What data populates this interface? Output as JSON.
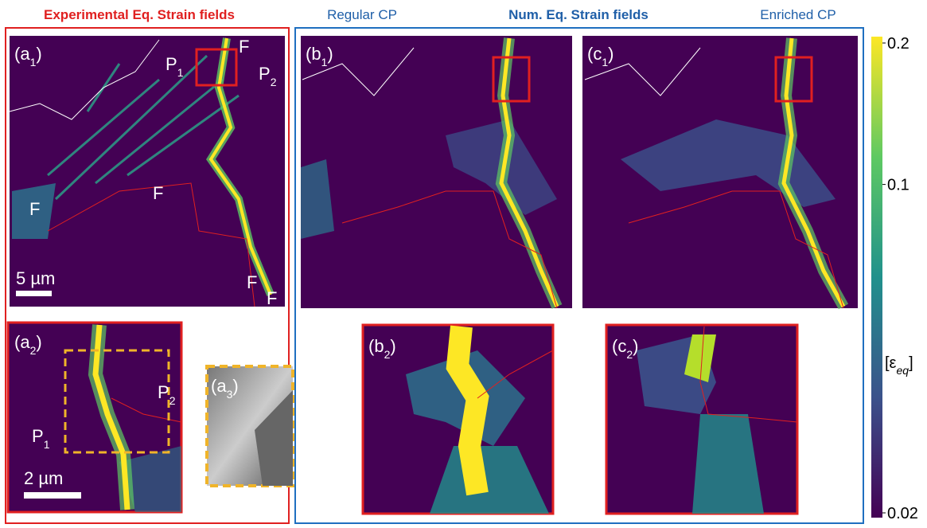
{
  "titles": {
    "experimental": "Experimental Eq. Strain fields",
    "regular": "Regular CP",
    "numerical": "Num. Eq. Strain fields",
    "enriched": "Enriched CP"
  },
  "panels": {
    "a1": [
      "(a",
      "1",
      ")"
    ],
    "a2": [
      "(a",
      "2",
      ")"
    ],
    "a3": [
      "(a",
      "3",
      ")"
    ],
    "b1": [
      "(b",
      "1",
      ")"
    ],
    "b2": [
      "(b",
      "2",
      ")"
    ],
    "c1": [
      "(c",
      "1",
      ")"
    ],
    "c2": [
      "(c",
      "2",
      ")"
    ]
  },
  "annotations": {
    "p1_a1": [
      "P",
      "1"
    ],
    "p2_a1": [
      "P",
      "2"
    ],
    "p1_a2": [
      "P",
      "1"
    ],
    "p2_a2": [
      "P",
      "2"
    ],
    "f": [
      "F",
      "F",
      "F",
      "F",
      "F"
    ]
  },
  "scale_bars": {
    "a1": "5 µm",
    "a2": "2 µm"
  },
  "colorbar": {
    "label": [
      "[ε",
      "eq",
      "]"
    ],
    "lim": [
      0.02,
      0.2
    ],
    "ticks": [
      0.2,
      0.1,
      0.02
    ],
    "log": true
  }
}
